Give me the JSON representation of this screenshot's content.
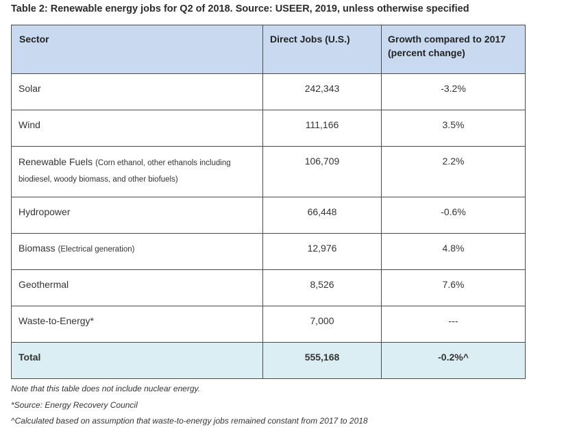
{
  "title": "Table 2: Renewable energy jobs for Q2 of 2018. Source: USEER, 2019, unless otherwise specified",
  "headers": {
    "sector": "Sector",
    "jobs": "Direct Jobs (U.S.)",
    "growth": "Growth compared to 2017 (percent change)"
  },
  "rows": [
    {
      "sector": "Solar",
      "note": "",
      "jobs": "242,343",
      "growth": "-3.2%"
    },
    {
      "sector": "Wind",
      "note": "",
      "jobs": "111,166",
      "growth": "3.5%"
    },
    {
      "sector": "Renewable Fuels",
      "note": "(Corn ethanol, other ethanols including biodiesel, woody biomass, and other biofuels)",
      "jobs": "106,709",
      "growth": "2.2%"
    },
    {
      "sector": "Hydropower",
      "note": "",
      "jobs": "66,448",
      "growth": "-0.6%"
    },
    {
      "sector": "Biomass",
      "note": "(Electrical generation)",
      "jobs": "12,976",
      "growth": "4.8%"
    },
    {
      "sector": "Geothermal",
      "note": "",
      "jobs": "8,526",
      "growth": "7.6%"
    },
    {
      "sector": "Waste-to-Energy*",
      "note": "",
      "jobs": "7,000",
      "growth": "---"
    }
  ],
  "total": {
    "label": "Total",
    "jobs": "555,168",
    "growth": "-0.2%^"
  },
  "notes": [
    "Note that this table does not include nuclear energy.",
    "*Source: Energy Recovery Council",
    "^Calculated based on assumption that waste-to-energy jobs remained constant from 2017 to 2018"
  ]
}
